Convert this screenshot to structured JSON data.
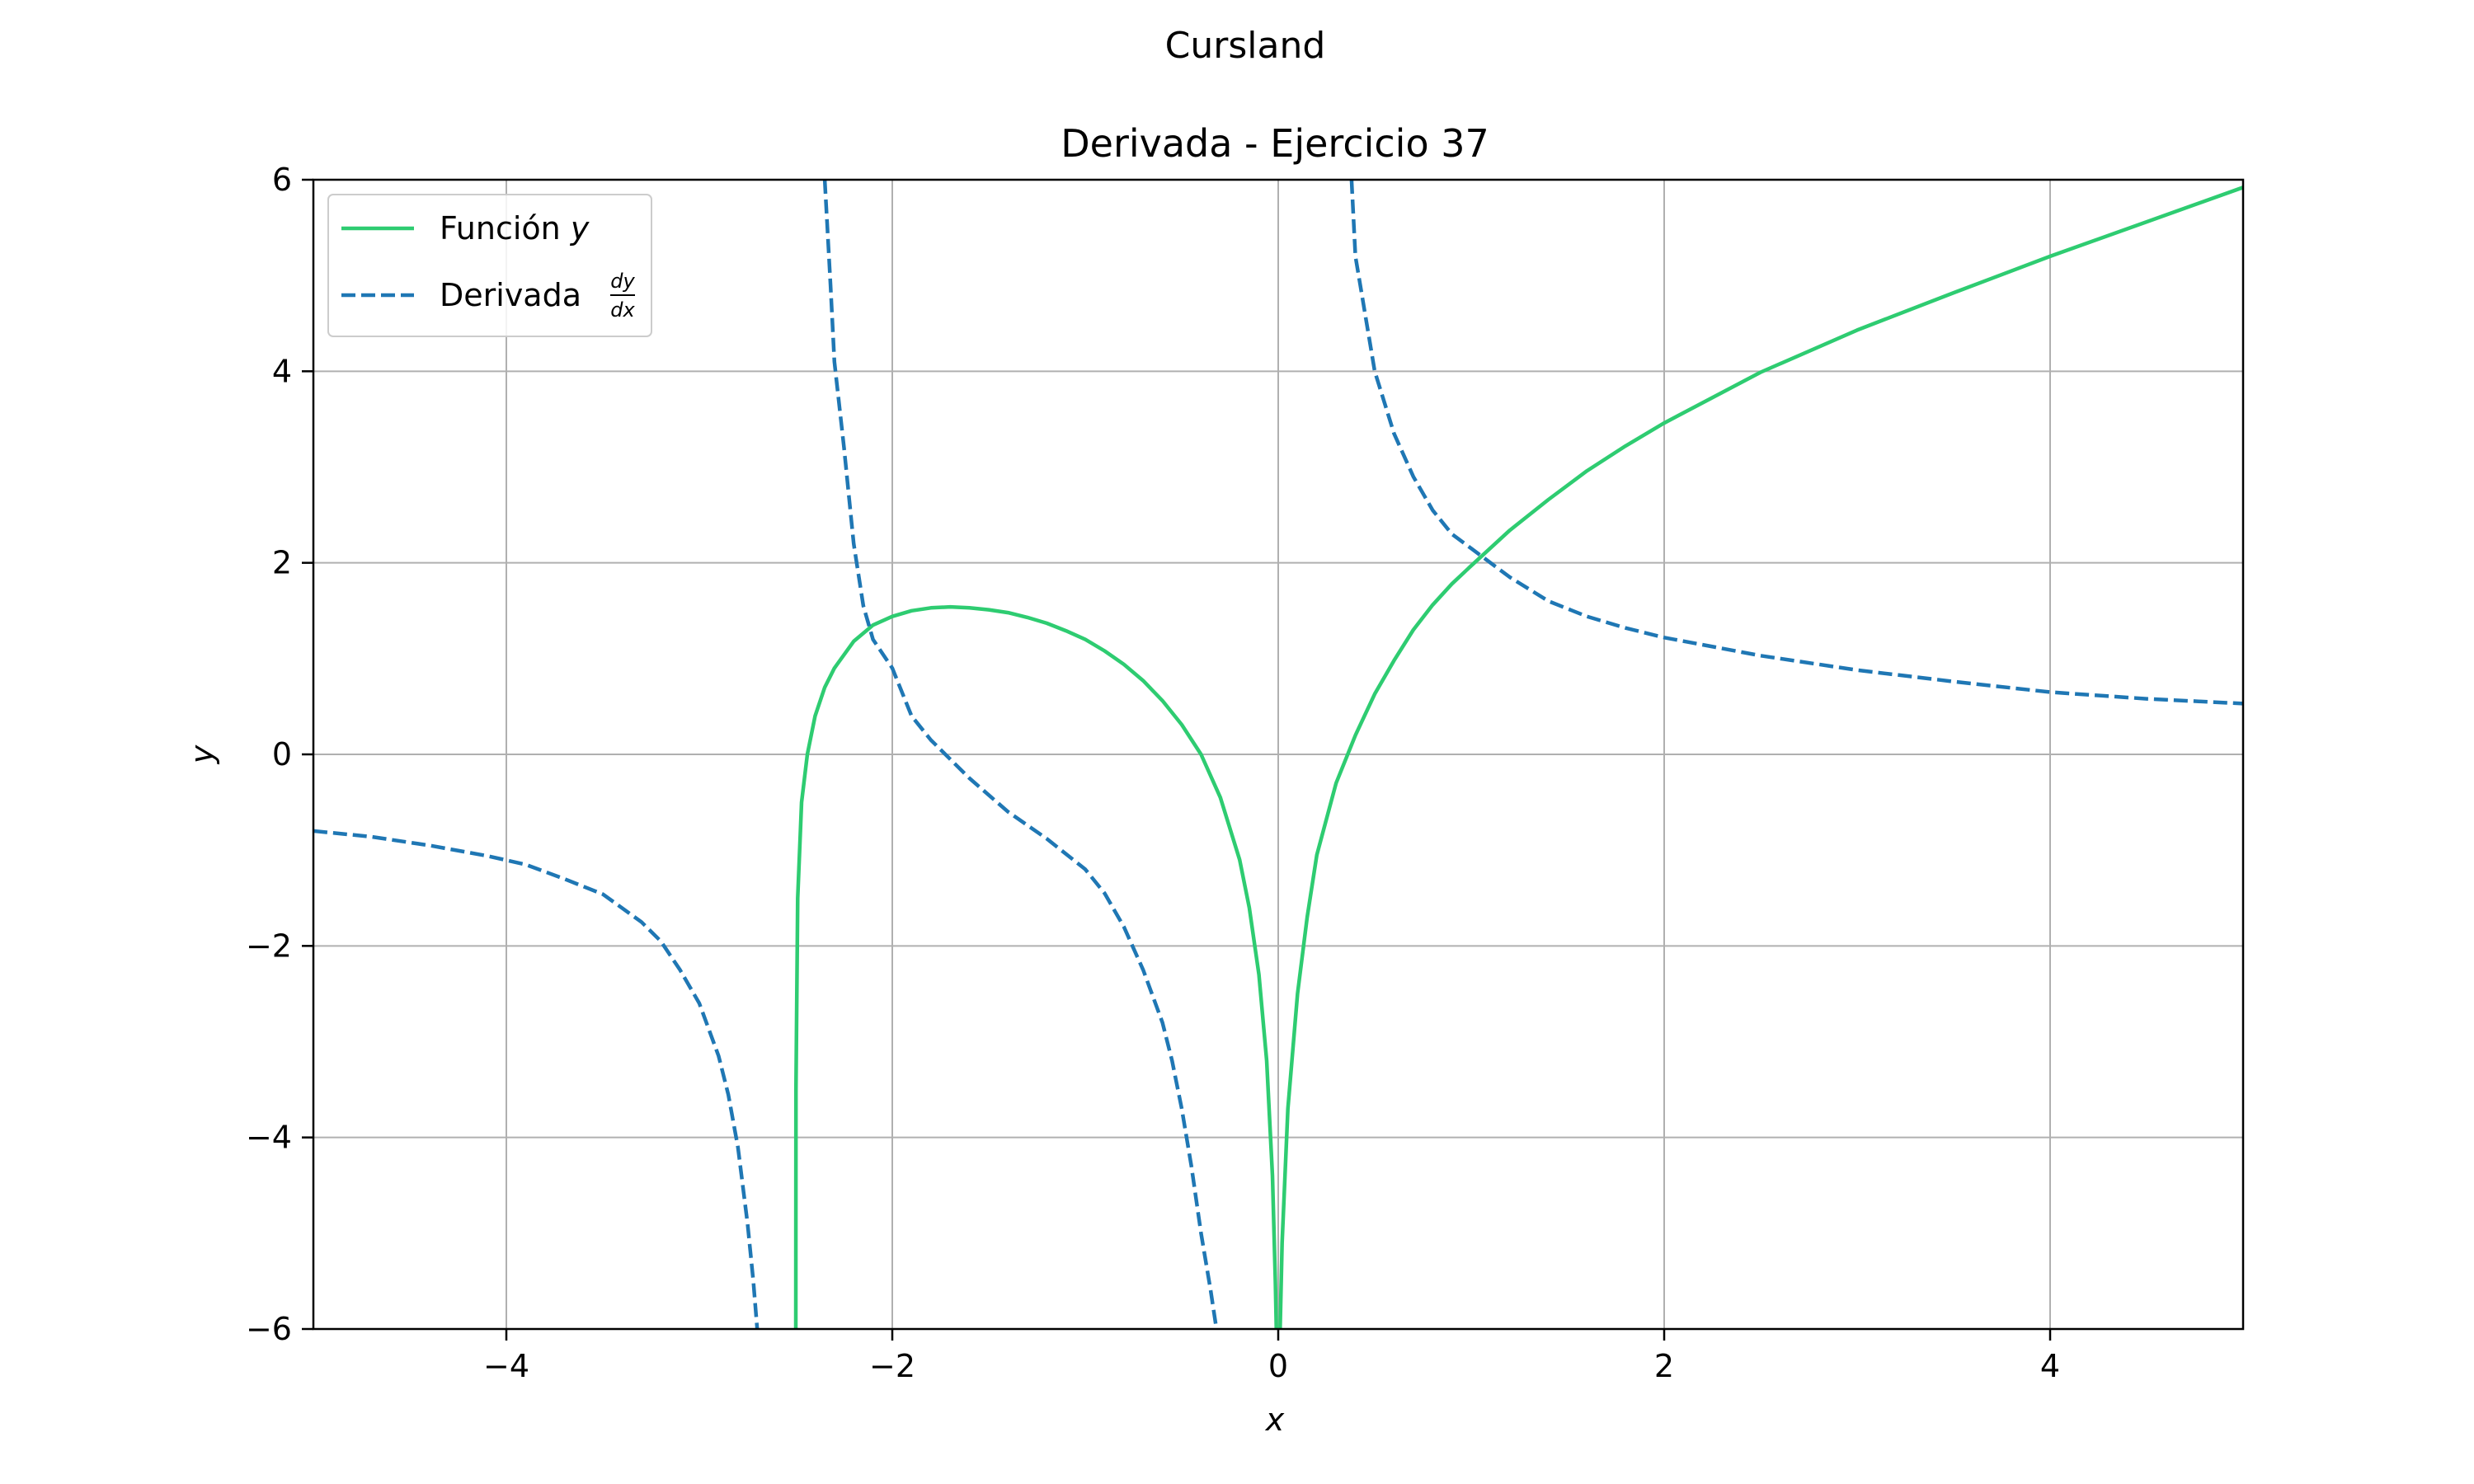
{
  "figure": {
    "suptitle": "Cursland"
  },
  "chart_data": {
    "type": "line",
    "title": "Derivada - Ejercicio 37",
    "xlabel": "x",
    "ylabel": "y",
    "xlim": [
      -5,
      5
    ],
    "ylim": [
      -6,
      6
    ],
    "grid": true,
    "legend_position": "upper-left",
    "x_ticks": [
      -4,
      -2,
      0,
      2,
      4
    ],
    "y_ticks": [
      -6,
      -4,
      -2,
      0,
      2,
      4,
      6
    ],
    "x_tick_labels": [
      "−4",
      "−2",
      "0",
      "2",
      "4"
    ],
    "y_tick_labels": [
      "−6",
      "−4",
      "−2",
      "0",
      "2",
      "4",
      "6"
    ],
    "series": [
      {
        "name": "Función y",
        "legend_label": "Función",
        "legend_var": "y",
        "style": "solid",
        "color": "#2ecc71",
        "segments": [
          [
            [
              -2.5,
              -6
            ],
            [
              -2.499,
              -3.5
            ],
            [
              -2.49,
              -1.5
            ],
            [
              -2.47,
              -0.5
            ],
            [
              -2.44,
              0.0
            ],
            [
              -2.4,
              0.4
            ],
            [
              -2.35,
              0.7
            ],
            [
              -2.3,
              0.9
            ],
            [
              -2.2,
              1.18
            ],
            [
              -2.1,
              1.35
            ],
            [
              -2.0,
              1.44
            ],
            [
              -1.9,
              1.5
            ],
            [
              -1.8,
              1.53
            ],
            [
              -1.7,
              1.54
            ],
            [
              -1.6,
              1.53
            ],
            [
              -1.5,
              1.51
            ],
            [
              -1.4,
              1.48
            ],
            [
              -1.3,
              1.43
            ],
            [
              -1.2,
              1.37
            ],
            [
              -1.1,
              1.29
            ],
            [
              -1.0,
              1.2
            ],
            [
              -0.9,
              1.08
            ],
            [
              -0.8,
              0.94
            ],
            [
              -0.7,
              0.77
            ],
            [
              -0.6,
              0.56
            ],
            [
              -0.5,
              0.31
            ],
            [
              -0.4,
              0.0
            ],
            [
              -0.3,
              -0.45
            ],
            [
              -0.2,
              -1.1
            ],
            [
              -0.15,
              -1.6
            ],
            [
              -0.1,
              -2.3
            ],
            [
              -0.06,
              -3.2
            ],
            [
              -0.03,
              -4.4
            ],
            [
              -0.015,
              -5.5
            ],
            [
              -0.01,
              -6
            ]
          ],
          [
            [
              0.01,
              -6
            ],
            [
              0.02,
              -5.1
            ],
            [
              0.05,
              -3.7
            ],
            [
              0.1,
              -2.5
            ],
            [
              0.15,
              -1.7
            ],
            [
              0.2,
              -1.05
            ],
            [
              0.3,
              -0.3
            ],
            [
              0.4,
              0.2
            ],
            [
              0.5,
              0.63
            ],
            [
              0.6,
              0.98
            ],
            [
              0.7,
              1.3
            ],
            [
              0.8,
              1.56
            ],
            [
              0.9,
              1.78
            ],
            [
              1.0,
              1.97
            ],
            [
              1.2,
              2.34
            ],
            [
              1.4,
              2.66
            ],
            [
              1.6,
              2.96
            ],
            [
              1.8,
              3.22
            ],
            [
              2.0,
              3.46
            ],
            [
              2.5,
              3.99
            ],
            [
              3.0,
              4.43
            ],
            [
              3.5,
              4.82
            ],
            [
              4.0,
              5.2
            ],
            [
              4.5,
              5.56
            ],
            [
              5.0,
              5.92
            ]
          ]
        ]
      },
      {
        "name": "Derivada dy/dx",
        "legend_label": "Derivada",
        "legend_num": "dy",
        "legend_den": "dx",
        "style": "dashed",
        "color": "#1f77b4",
        "segments": [
          [
            [
              -5.0,
              -0.8
            ],
            [
              -4.7,
              -0.86
            ],
            [
              -4.4,
              -0.95
            ],
            [
              -4.1,
              -1.06
            ],
            [
              -3.9,
              -1.15
            ],
            [
              -3.7,
              -1.3
            ],
            [
              -3.5,
              -1.46
            ],
            [
              -3.3,
              -1.75
            ],
            [
              -3.2,
              -1.95
            ],
            [
              -3.1,
              -2.25
            ],
            [
              -3.0,
              -2.6
            ],
            [
              -2.9,
              -3.15
            ],
            [
              -2.85,
              -3.55
            ],
            [
              -2.8,
              -4.1
            ],
            [
              -2.75,
              -4.9
            ],
            [
              -2.72,
              -5.5
            ],
            [
              -2.7,
              -6
            ]
          ],
          [
            [
              -2.35,
              6
            ],
            [
              -2.32,
              4.9
            ],
            [
              -2.3,
              4.1
            ],
            [
              -2.25,
              3.2
            ],
            [
              -2.2,
              2.2
            ],
            [
              -2.15,
              1.55
            ],
            [
              -2.1,
              1.2
            ],
            [
              -2.0,
              0.9
            ],
            [
              -1.9,
              0.4
            ],
            [
              -1.8,
              0.15
            ],
            [
              -1.7,
              -0.05
            ],
            [
              -1.6,
              -0.25
            ],
            [
              -1.4,
              -0.6
            ],
            [
              -1.2,
              -0.88
            ],
            [
              -1.0,
              -1.2
            ],
            [
              -0.9,
              -1.45
            ],
            [
              -0.8,
              -1.8
            ],
            [
              -0.7,
              -2.25
            ],
            [
              -0.6,
              -2.8
            ],
            [
              -0.55,
              -3.2
            ],
            [
              -0.5,
              -3.7
            ],
            [
              -0.45,
              -4.3
            ],
            [
              -0.4,
              -5.0
            ],
            [
              -0.35,
              -5.6
            ],
            [
              -0.32,
              -6
            ]
          ],
          [
            [
              0.38,
              6
            ],
            [
              0.4,
              5.2
            ],
            [
              0.45,
              4.6
            ],
            [
              0.5,
              4.0
            ],
            [
              0.6,
              3.35
            ],
            [
              0.7,
              2.9
            ],
            [
              0.8,
              2.55
            ],
            [
              0.9,
              2.3
            ],
            [
              1.0,
              2.15
            ],
            [
              1.2,
              1.85
            ],
            [
              1.4,
              1.6
            ],
            [
              1.6,
              1.44
            ],
            [
              1.8,
              1.32
            ],
            [
              2.0,
              1.22
            ],
            [
              2.5,
              1.03
            ],
            [
              3.0,
              0.88
            ],
            [
              3.5,
              0.76
            ],
            [
              4.0,
              0.65
            ],
            [
              4.5,
              0.58
            ],
            [
              5.0,
              0.53
            ]
          ]
        ]
      }
    ]
  }
}
